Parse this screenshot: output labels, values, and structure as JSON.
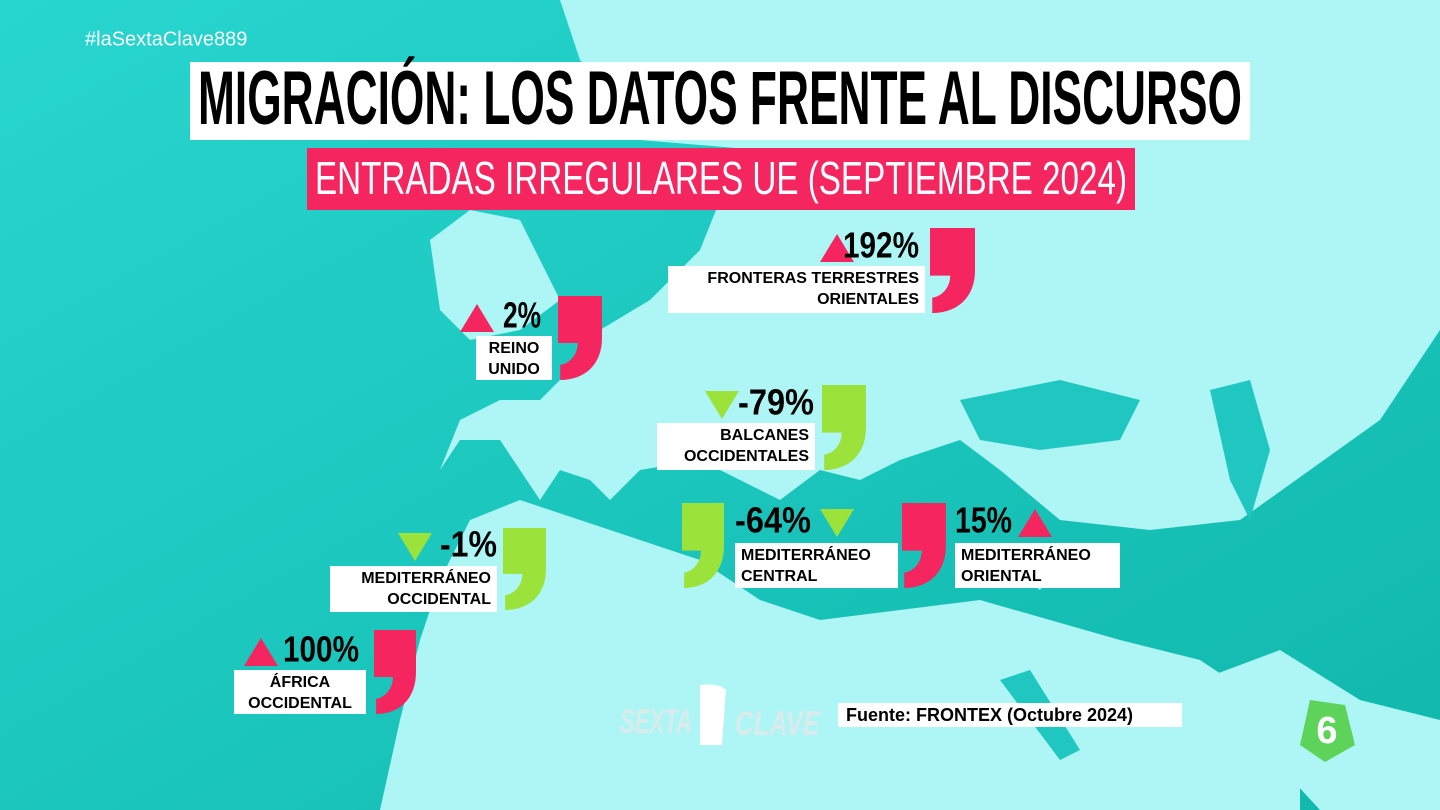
{
  "hashtag": "#laSextaClave889",
  "title": "MIGRACIÓN: LOS DATOS FRENTE AL DISCURSO",
  "subtitle": "ENTRADAS IRREGULARES UE (SEPTIEMBRE 2024)",
  "routes": [
    {
      "value": "192%",
      "name": [
        "FRONTERAS TERRESTRES",
        "ORIENTALES"
      ],
      "trend": "up",
      "color": "#f5255f"
    },
    {
      "value": "2%",
      "name": [
        "REINO",
        "UNIDO"
      ],
      "trend": "up",
      "color": "#f5255f"
    },
    {
      "value": "-79%",
      "name": [
        "BALCANES",
        "OCCIDENTALES"
      ],
      "trend": "down",
      "color": "#9be23a"
    },
    {
      "value": "-1%",
      "name": [
        "MEDITERRÁNEO",
        "OCCIDENTAL"
      ],
      "trend": "down",
      "color": "#9be23a"
    },
    {
      "value": "100%",
      "name": [
        "ÁFRICA",
        "OCCIDENTAL"
      ],
      "trend": "up",
      "color": "#f5255f"
    },
    {
      "value": "-64%",
      "name": [
        "MEDITERRÁNEO",
        "CENTRAL"
      ],
      "trend": "down",
      "color": "#9be23a"
    },
    {
      "value": "15%",
      "name": [
        "MEDITERRÁNEO",
        "ORIENTAL"
      ],
      "trend": "up",
      "color": "#f5255f"
    }
  ],
  "logo": [
    "SEXTA",
    "CLAVE"
  ],
  "source": "Fuente: FRONTEX (Octubre 2024)",
  "channel": "6"
}
